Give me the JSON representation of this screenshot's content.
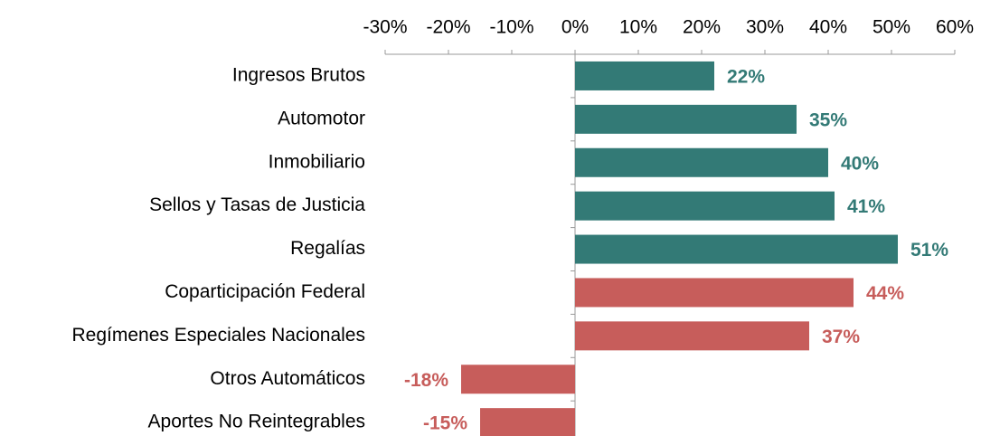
{
  "chart_data": {
    "type": "bar",
    "orientation": "horizontal",
    "categories": [
      "Ingresos Brutos",
      "Automotor",
      "Inmobiliario",
      "Sellos y Tasas de Justicia",
      "Regalías",
      "Coparticipación Federal",
      "Regímenes Especiales Nacionales",
      "Otros Automáticos",
      "Aportes No Reintegrables"
    ],
    "values": [
      22,
      35,
      40,
      41,
      51,
      44,
      37,
      -18,
      -15
    ],
    "value_labels": [
      "22%",
      "35%",
      "40%",
      "41%",
      "51%",
      "44%",
      "37%",
      "-18%",
      "-15%"
    ],
    "colors": [
      "#337a76",
      "#337a76",
      "#337a76",
      "#337a76",
      "#337a76",
      "#c75d5b",
      "#c75d5b",
      "#c75d5b",
      "#c75d5b"
    ],
    "xlim": [
      -30,
      60
    ],
    "xticks": [
      {
        "value": -30,
        "label": "-30%"
      },
      {
        "value": -20,
        "label": "-20%"
      },
      {
        "value": -10,
        "label": "-10%"
      },
      {
        "value": 0,
        "label": "0%"
      },
      {
        "value": 10,
        "label": "10%"
      },
      {
        "value": 20,
        "label": "20%"
      },
      {
        "value": 30,
        "label": "30%"
      },
      {
        "value": 40,
        "label": "40%"
      },
      {
        "value": 50,
        "label": "50%"
      },
      {
        "value": 60,
        "label": "60%"
      }
    ],
    "grid": false
  }
}
